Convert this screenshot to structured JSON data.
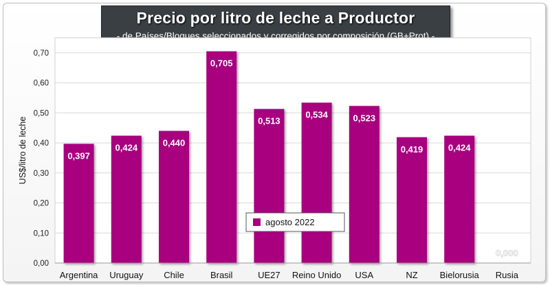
{
  "chart_data": {
    "type": "bar",
    "title": "Precio por litro de leche a Productor",
    "subtitle": "-  de Países/Bloques seleccionados y corregidos por composición (GB+Prot) -",
    "xlabel": "",
    "ylabel": "US$/litro de leche",
    "ylim": [
      0,
      0.75
    ],
    "yticks": [
      0,
      0.1,
      0.2,
      0.3,
      0.4,
      0.5,
      0.6,
      0.7
    ],
    "ytick_labels": [
      "0,00",
      "0,10",
      "0,20",
      "0,30",
      "0,40",
      "0,50",
      "0,60",
      "0,70"
    ],
    "grid": true,
    "legend_position": "bottom-center",
    "categories": [
      "Argentina",
      "Uruguay",
      "Chile",
      "Brasil",
      "UE27",
      "Reino Unido",
      "USA",
      "NZ",
      "Bielorusia",
      "Rusia"
    ],
    "series": [
      {
        "name": "agosto 2022",
        "color": "#a8007f",
        "values": [
          0.397,
          0.424,
          0.44,
          0.705,
          0.513,
          0.534,
          0.523,
          0.419,
          0.424,
          0.0
        ],
        "value_labels": [
          "0,397",
          "0,424",
          "0,440",
          "0,705",
          "0,513",
          "0,534",
          "0,523",
          "0,419",
          "0,424",
          "0,000"
        ]
      }
    ]
  }
}
